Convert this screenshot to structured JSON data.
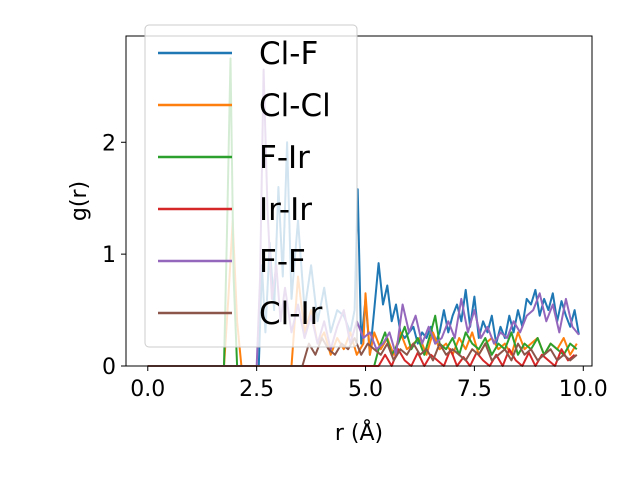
{
  "chart_data": {
    "type": "line",
    "title": "",
    "xlabel": "r (Å)",
    "ylabel": "g(r)",
    "xlim": [
      -0.5,
      10.2
    ],
    "ylim": [
      0,
      2.95
    ],
    "xticks": [
      0.0,
      2.5,
      5.0,
      7.5,
      10.0
    ],
    "xtick_labels": [
      "0.0",
      "2.5",
      "5.0",
      "7.5",
      "10.0"
    ],
    "yticks": [
      0,
      1,
      2
    ],
    "ytick_labels": [
      "0",
      "1",
      "2"
    ],
    "grid": false,
    "legend_position": "upper-left",
    "series": [
      {
        "name": "Cl-F",
        "color": "#1f77b4",
        "x": [
          0.0,
          2.55,
          2.62,
          2.7,
          2.8,
          2.9,
          3.0,
          3.1,
          3.2,
          3.3,
          3.45,
          3.6,
          3.75,
          3.9,
          4.05,
          4.2,
          4.35,
          4.5,
          4.65,
          4.75,
          4.82,
          4.9,
          5.0,
          5.1,
          5.2,
          5.3,
          5.4,
          5.5,
          5.6,
          5.7,
          5.8,
          5.9,
          6.0,
          6.1,
          6.2,
          6.3,
          6.4,
          6.5,
          6.6,
          6.7,
          6.8,
          6.9,
          7.0,
          7.1,
          7.2,
          7.3,
          7.4,
          7.5,
          7.6,
          7.7,
          7.8,
          7.9,
          8.0,
          8.1,
          8.2,
          8.3,
          8.4,
          8.5,
          8.6,
          8.7,
          8.8,
          8.9,
          9.0,
          9.1,
          9.2,
          9.3,
          9.4,
          9.5,
          9.6,
          9.7,
          9.8,
          9.9
        ],
        "y": [
          0.0,
          0.0,
          0.9,
          0.3,
          1.1,
          0.5,
          1.6,
          0.8,
          2.0,
          0.6,
          1.3,
          0.5,
          0.9,
          0.4,
          0.7,
          0.3,
          0.5,
          0.45,
          0.3,
          0.5,
          1.58,
          0.2,
          0.6,
          0.1,
          0.5,
          0.92,
          0.55,
          0.72,
          0.4,
          0.55,
          0.3,
          0.25,
          0.3,
          0.35,
          0.2,
          0.3,
          0.25,
          0.35,
          0.2,
          0.3,
          0.5,
          0.3,
          0.45,
          0.55,
          0.4,
          0.68,
          0.35,
          0.62,
          0.25,
          0.4,
          0.3,
          0.45,
          0.2,
          0.35,
          0.25,
          0.45,
          0.3,
          0.5,
          0.35,
          0.6,
          0.55,
          0.68,
          0.45,
          0.6,
          0.5,
          0.65,
          0.4,
          0.58,
          0.45,
          0.35,
          0.5,
          0.28
        ]
      },
      {
        "name": "Cl-Cl",
        "color": "#ff7f0e",
        "x": [
          0.0,
          1.75,
          1.85,
          1.95,
          2.05,
          2.15,
          3.3,
          3.45,
          3.6,
          3.75,
          3.9,
          4.05,
          4.2,
          4.35,
          4.5,
          4.65,
          4.8,
          4.95,
          5.0,
          5.1,
          5.2,
          5.35,
          5.5,
          5.65,
          5.8,
          5.95,
          6.1,
          6.25,
          6.4,
          6.55,
          6.7,
          6.85,
          7.0,
          7.15,
          7.3,
          7.45,
          7.6,
          7.75,
          7.9,
          8.05,
          8.2,
          8.35,
          8.5,
          8.65,
          8.8,
          8.95,
          9.1,
          9.25,
          9.4,
          9.55,
          9.7,
          9.85
        ],
        "y": [
          0.0,
          0.0,
          0.6,
          1.3,
          0.4,
          0.0,
          0.0,
          0.8,
          0.3,
          0.5,
          0.2,
          0.3,
          0.1,
          0.25,
          0.15,
          0.3,
          0.1,
          0.2,
          0.65,
          0.1,
          0.3,
          0.15,
          0.25,
          0.1,
          0.3,
          0.15,
          0.2,
          0.25,
          0.1,
          0.3,
          0.15,
          0.2,
          0.1,
          0.25,
          0.15,
          0.3,
          0.1,
          0.2,
          0.25,
          0.15,
          0.2,
          0.1,
          0.3,
          0.15,
          0.2,
          0.25,
          0.1,
          0.2,
          0.15,
          0.25,
          0.1,
          0.2
        ]
      },
      {
        "name": "F-Ir",
        "color": "#2ca02c",
        "x": [
          0.0,
          1.75,
          1.82,
          1.9,
          1.97,
          2.05,
          5.2,
          5.3,
          5.45,
          5.6,
          5.75,
          5.9,
          6.05,
          6.2,
          6.35,
          6.5,
          6.6,
          6.7,
          6.85,
          7.0,
          7.15,
          7.3,
          7.45,
          7.6,
          7.75,
          7.9,
          8.05,
          8.2,
          8.35,
          8.5,
          8.65,
          8.8,
          8.95,
          9.1,
          9.25,
          9.4,
          9.55,
          9.7,
          9.85
        ],
        "y": [
          0.0,
          0.0,
          1.2,
          2.75,
          0.8,
          0.0,
          0.0,
          0.15,
          0.3,
          0.1,
          0.2,
          0.35,
          0.15,
          0.25,
          0.1,
          0.3,
          0.45,
          0.2,
          0.15,
          0.25,
          0.1,
          0.3,
          0.2,
          0.15,
          0.25,
          0.1,
          0.2,
          0.15,
          0.3,
          0.1,
          0.2,
          0.15,
          0.25,
          0.1,
          0.2,
          0.15,
          0.1,
          0.2,
          0.15
        ]
      },
      {
        "name": "Ir-Ir",
        "color": "#d62728",
        "x": [
          0.0,
          5.3,
          5.45,
          5.6,
          5.75,
          5.9,
          6.05,
          6.2,
          6.35,
          6.5,
          6.65,
          6.8,
          6.95,
          7.1,
          7.25,
          7.4,
          7.55,
          7.7,
          7.85,
          8.0,
          8.15,
          8.3,
          8.45,
          8.6,
          8.75,
          8.9,
          9.05,
          9.2,
          9.35,
          9.5,
          9.65,
          9.8
        ],
        "y": [
          0.0,
          0.0,
          0.1,
          0.0,
          0.15,
          0.05,
          0.0,
          0.12,
          0.0,
          0.1,
          0.05,
          0.0,
          0.15,
          0.0,
          0.08,
          0.0,
          0.12,
          0.05,
          0.0,
          0.1,
          0.0,
          0.15,
          0.05,
          0.0,
          0.12,
          0.0,
          0.1,
          0.05,
          0.0,
          0.15,
          0.05,
          0.1
        ]
      },
      {
        "name": "F-F",
        "color": "#9467bd",
        "x": [
          0.0,
          2.5,
          2.58,
          2.66,
          2.75,
          2.85,
          2.95,
          3.05,
          3.15,
          3.3,
          3.45,
          3.6,
          3.75,
          3.9,
          4.05,
          4.2,
          4.35,
          4.5,
          4.65,
          4.8,
          4.95,
          5.1,
          5.25,
          5.4,
          5.55,
          5.7,
          5.85,
          6.0,
          6.15,
          6.3,
          6.45,
          6.6,
          6.75,
          6.9,
          7.05,
          7.2,
          7.35,
          7.5,
          7.65,
          7.8,
          7.95,
          8.1,
          8.25,
          8.4,
          8.55,
          8.7,
          8.85,
          9.0,
          9.15,
          9.3,
          9.45,
          9.6,
          9.75,
          9.9
        ],
        "y": [
          0.0,
          0.0,
          0.8,
          2.65,
          1.4,
          0.6,
          0.9,
          0.4,
          0.7,
          0.3,
          0.55,
          0.25,
          0.45,
          0.2,
          0.4,
          0.15,
          0.35,
          0.5,
          0.2,
          0.4,
          0.25,
          0.3,
          0.15,
          0.2,
          0.3,
          0.1,
          0.55,
          0.3,
          0.45,
          0.2,
          0.35,
          0.2,
          0.25,
          0.4,
          0.25,
          0.6,
          0.3,
          0.5,
          0.25,
          0.35,
          0.2,
          0.3,
          0.25,
          0.4,
          0.3,
          0.45,
          0.5,
          0.65,
          0.4,
          0.55,
          0.3,
          0.6,
          0.35,
          0.28
        ]
      },
      {
        "name": "Cl-Ir",
        "color": "#8c564b",
        "x": [
          0.0,
          3.55,
          3.7,
          3.85,
          4.0,
          4.15,
          4.3,
          4.45,
          4.6,
          4.75,
          4.9,
          5.05,
          5.2,
          5.35,
          5.5,
          5.65,
          5.8,
          5.95,
          6.1,
          6.25,
          6.4,
          6.55,
          6.7,
          6.85,
          7.0,
          7.15,
          7.3,
          7.45,
          7.6,
          7.75,
          7.9,
          8.05,
          8.2,
          8.35,
          8.5,
          8.65,
          8.8,
          8.95,
          9.1,
          9.25,
          9.4,
          9.55,
          9.7,
          9.85
        ],
        "y": [
          0.0,
          0.0,
          0.2,
          0.1,
          0.25,
          0.15,
          0.1,
          0.2,
          0.15,
          0.25,
          0.1,
          0.2,
          0.15,
          0.1,
          0.2,
          0.05,
          0.15,
          0.1,
          0.2,
          0.1,
          0.15,
          0.05,
          0.2,
          0.1,
          0.15,
          0.1,
          0.05,
          0.15,
          0.1,
          0.2,
          0.05,
          0.1,
          0.15,
          0.05,
          0.2,
          0.1,
          0.15,
          0.05,
          0.1,
          0.15,
          0.05,
          0.1,
          0.05,
          0.1
        ]
      }
    ]
  }
}
